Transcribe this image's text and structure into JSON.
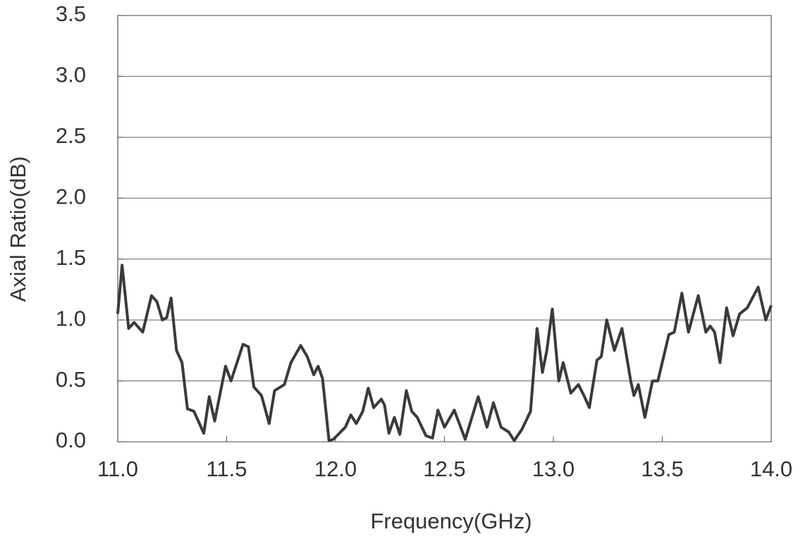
{
  "chart_data": {
    "type": "line",
    "xlabel": "Frequency(GHz)",
    "ylabel": "Axial Ratio(dB)",
    "xlim": [
      11.0,
      14.0
    ],
    "xticks": [
      {
        "value": 11.0,
        "label": "11.0"
      },
      11.5,
      {
        "value": 12.0,
        "label": "12.0"
      },
      12.5,
      {
        "value": 13.0,
        "label": "13.0"
      },
      13.5,
      {
        "value": 14.0,
        "label": "14.0"
      }
    ],
    "ylim": [
      0,
      3.5
    ],
    "yticks": [
      {
        "value": 0,
        "label": "0.0"
      },
      0.5,
      {
        "value": 1,
        "label": "1.0"
      },
      1.5,
      {
        "value": 2,
        "label": "2.0"
      },
      2.5,
      {
        "value": 3,
        "label": "3.0"
      },
      3.5
    ],
    "grid": true,
    "series": [
      {
        "color": "#3a3a3a",
        "x": [
          11.0,
          11.02,
          11.05,
          11.075,
          11.115,
          11.155,
          11.18,
          11.205,
          11.225,
          11.245,
          11.27,
          11.295,
          11.32,
          11.35,
          11.395,
          11.42,
          11.445,
          11.495,
          11.52,
          11.575,
          11.6,
          11.625,
          11.66,
          11.695,
          11.72,
          11.765,
          11.795,
          11.84,
          11.87,
          11.9,
          11.92,
          11.94,
          11.97,
          11.99,
          12.045,
          12.07,
          12.095,
          12.125,
          12.15,
          12.175,
          12.21,
          12.225,
          12.245,
          12.27,
          12.295,
          12.325,
          12.35,
          12.375,
          12.415,
          12.445,
          12.47,
          12.5,
          12.545,
          12.595,
          12.655,
          12.695,
          12.725,
          12.76,
          12.795,
          12.82,
          12.855,
          12.895,
          12.925,
          12.95,
          12.97,
          12.995,
          13.025,
          13.045,
          13.08,
          13.115,
          13.14,
          13.165,
          13.2,
          13.22,
          13.245,
          13.28,
          13.315,
          13.355,
          13.37,
          13.39,
          13.42,
          13.455,
          13.48,
          13.53,
          13.555,
          13.59,
          13.62,
          13.665,
          13.7,
          13.72,
          13.74,
          13.765,
          13.795,
          13.825,
          13.855,
          13.89,
          13.94,
          13.975,
          14.0
        ],
        "values": [
          1.05,
          1.45,
          0.93,
          0.98,
          0.9,
          1.2,
          1.15,
          1.0,
          1.02,
          1.18,
          0.75,
          0.65,
          0.27,
          0.25,
          0.07,
          0.37,
          0.17,
          0.62,
          0.5,
          0.8,
          0.78,
          0.45,
          0.38,
          0.15,
          0.42,
          0.47,
          0.65,
          0.79,
          0.7,
          0.55,
          0.62,
          0.52,
          0.01,
          0.02,
          0.12,
          0.22,
          0.15,
          0.25,
          0.44,
          0.28,
          0.35,
          0.3,
          0.07,
          0.2,
          0.06,
          0.42,
          0.25,
          0.2,
          0.05,
          0.03,
          0.26,
          0.12,
          0.26,
          0.02,
          0.37,
          0.12,
          0.32,
          0.12,
          0.08,
          0.01,
          0.1,
          0.25,
          0.93,
          0.57,
          0.75,
          1.09,
          0.5,
          0.65,
          0.4,
          0.47,
          0.38,
          0.28,
          0.67,
          0.7,
          1.0,
          0.75,
          0.93,
          0.5,
          0.38,
          0.47,
          0.2,
          0.5,
          0.5,
          0.88,
          0.9,
          1.22,
          0.9,
          1.2,
          0.9,
          0.95,
          0.9,
          0.65,
          1.1,
          0.87,
          1.05,
          1.1,
          1.27,
          1.0,
          1.12
        ]
      }
    ]
  }
}
